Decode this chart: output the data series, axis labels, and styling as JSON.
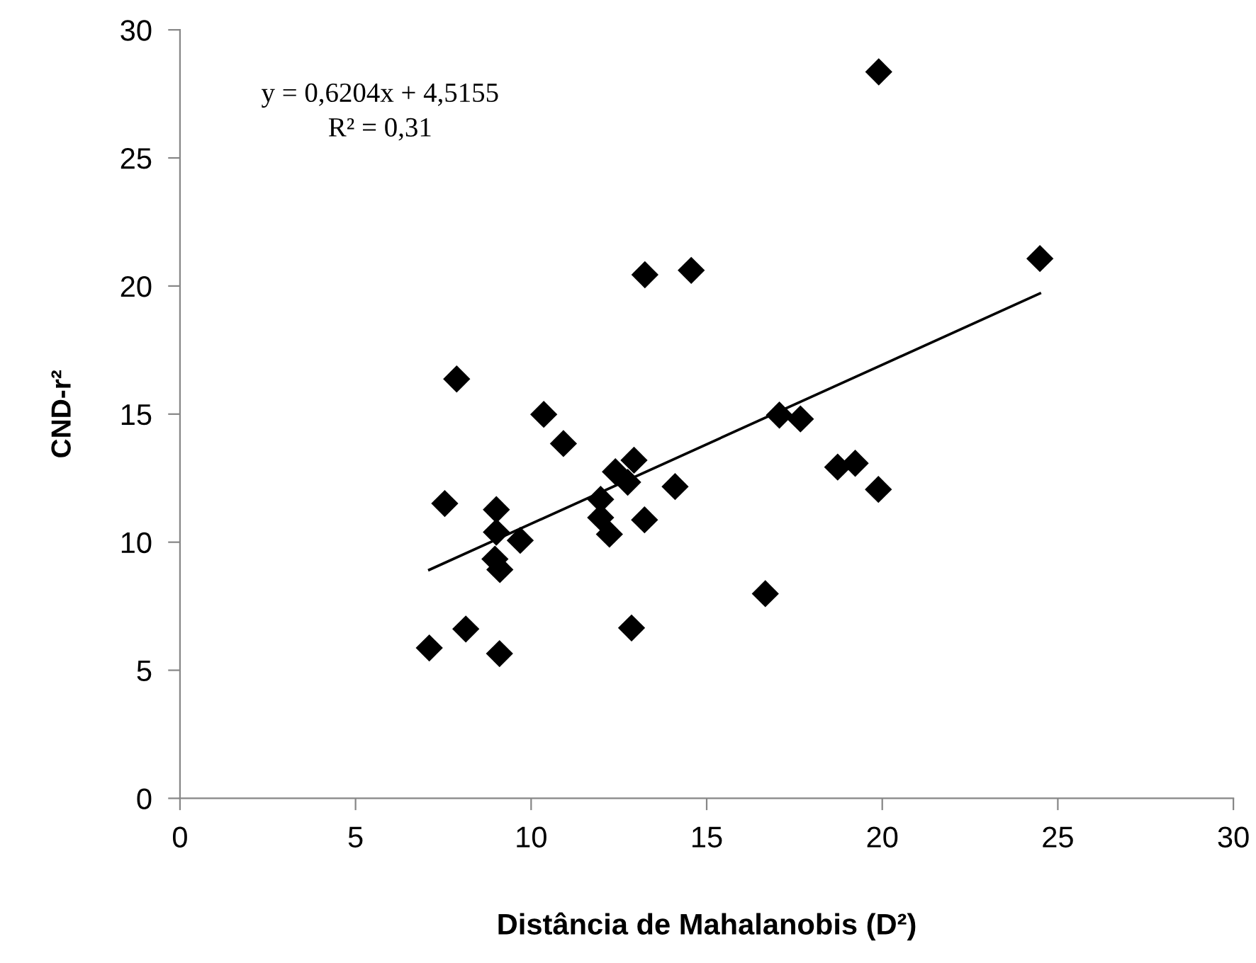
{
  "chart_data": {
    "type": "scatter",
    "xlabel": "Distância de Mahalanobis (D²)",
    "ylabel": "CND-r²",
    "annotations": [
      "y = 0,6204x + 4,5155",
      "R² = 0,31"
    ],
    "xlim": [
      0,
      30
    ],
    "xticks": [
      0,
      5,
      10,
      15,
      20,
      25,
      30
    ],
    "ylim": [
      0,
      30
    ],
    "yticks": [
      0,
      5,
      10,
      15,
      20,
      25,
      30
    ],
    "grid": false,
    "series": [
      {
        "color": "#000000",
        "marker": "diamond",
        "x": [
          13.24,
          14.56,
          7.88,
          10.36,
          10.92,
          12.93,
          12.4,
          12.75,
          14.1,
          7.54,
          9.01,
          11.98,
          11.98,
          13.23,
          9.01,
          12.23,
          9.69,
          8.97,
          9.11,
          16.67,
          8.14,
          12.86,
          7.1,
          9.1,
          17.07,
          17.67,
          18.73,
          19.9,
          24.49,
          19.23,
          19.89
        ],
        "values": [
          20.44,
          20.61,
          16.37,
          14.99,
          13.85,
          13.2,
          12.75,
          12.34,
          12.17,
          11.51,
          11.27,
          11.67,
          10.96,
          10.87,
          10.39,
          10.31,
          10.07,
          9.34,
          8.93,
          7.99,
          6.61,
          6.65,
          5.87,
          5.65,
          14.96,
          14.81,
          12.93,
          28.36,
          21.07,
          13.08,
          12.06
        ]
      },
      {
        "type": "line",
        "color": "#000000",
        "line_style": "solid",
        "x": [
          7.1,
          24.49
        ],
        "values": [
          8.92,
          19.71
        ]
      }
    ]
  }
}
